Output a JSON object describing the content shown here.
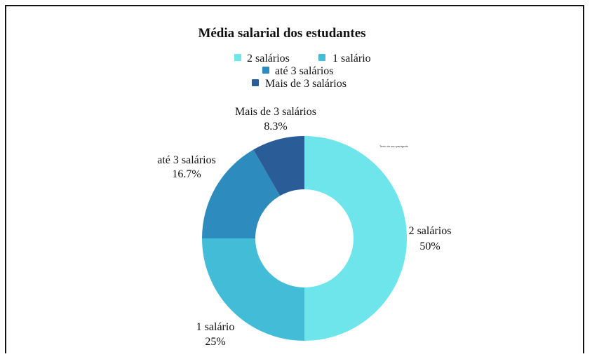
{
  "chart_data": {
    "type": "pie",
    "title": "Média salarial dos estudantes",
    "donut": true,
    "legend_position": "top",
    "slices": [
      {
        "label": "2 salários",
        "value": 50,
        "percent_label": "50%",
        "color": "#6de5ea"
      },
      {
        "label": "1 salário",
        "value": 25,
        "percent_label": "25%",
        "color": "#43bcd8"
      },
      {
        "label": "até 3 salários",
        "value": 16.7,
        "percent_label": "16.7%",
        "color": "#2e8bbd"
      },
      {
        "label": "Mais de 3 salários",
        "value": 8.3,
        "percent_label": "8.3%",
        "color": "#2a5d97"
      }
    ],
    "annotation": "Texto do seu parágrafo"
  }
}
